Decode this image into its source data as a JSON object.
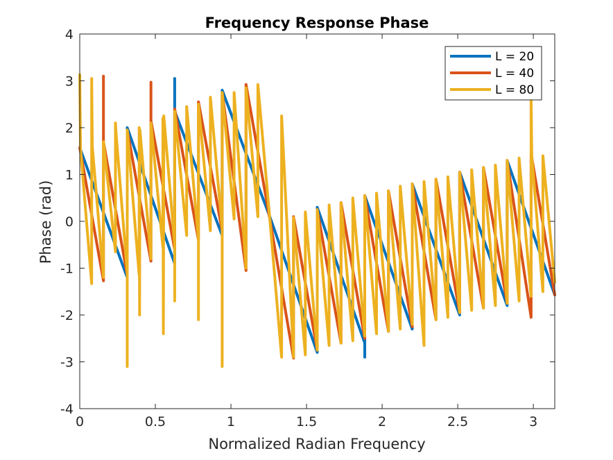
{
  "chart_data": {
    "type": "line",
    "title": "Frequency Response Phase",
    "xlabel": "Normalized Radian Frequency",
    "ylabel": "Phase (rad)",
    "xlim": [
      0,
      3.1416
    ],
    "ylim": [
      -4,
      4
    ],
    "xticks": [
      0,
      0.5,
      1,
      1.5,
      2,
      2.5,
      3
    ],
    "xtick_labels": [
      "0",
      "0.5",
      "1",
      "1.5",
      "2",
      "2.5",
      "3"
    ],
    "yticks": [
      4,
      3,
      2,
      1,
      0,
      -1,
      -2,
      -3,
      -4
    ],
    "ytick_labels": [
      "4",
      "3",
      "2",
      "1",
      "0",
      "-1",
      "-2",
      "-3",
      "-4"
    ],
    "grid": false,
    "legend_position": "top-right",
    "series": [
      {
        "name": "L = 20",
        "color": "#0072BD",
        "points": [
          [
            0,
            1.57
          ],
          [
            0.314,
            -1.2
          ],
          [
            0.314,
            2.0
          ],
          [
            0.628,
            -0.9
          ],
          [
            0.628,
            3.05
          ],
          [
            0.628,
            2.35
          ],
          [
            0.942,
            -0.3
          ],
          [
            0.942,
            2.8
          ],
          [
            1.257,
            0.1
          ],
          [
            1.571,
            -2.8
          ],
          [
            1.571,
            0.3
          ],
          [
            1.885,
            -2.6
          ],
          [
            1.885,
            -2.9
          ],
          [
            1.885,
            0.55
          ],
          [
            2.199,
            -2.3
          ],
          [
            2.199,
            0.8
          ],
          [
            2.513,
            -2.0
          ],
          [
            2.513,
            1.05
          ],
          [
            2.827,
            -1.8
          ],
          [
            2.827,
            1.3
          ],
          [
            3.1416,
            -1.57
          ]
        ]
      },
      {
        "name": "L = 40",
        "color": "#D95319",
        "points": [
          [
            0,
            1.57
          ],
          [
            0.157,
            -1.27
          ],
          [
            0.157,
            3.1
          ],
          [
            0.157,
            1.7
          ],
          [
            0.314,
            -1.15
          ],
          [
            0.314,
            1.95
          ],
          [
            0.471,
            -0.85
          ],
          [
            0.471,
            2.97
          ],
          [
            0.471,
            2.15
          ],
          [
            0.628,
            -0.6
          ],
          [
            0.628,
            2.4
          ],
          [
            0.785,
            -0.4
          ],
          [
            0.785,
            2.55
          ],
          [
            0.942,
            -0.2
          ],
          [
            0.942,
            2.75
          ],
          [
            1.1,
            -1.05
          ],
          [
            1.1,
            2.92
          ],
          [
            1.257,
            0.05
          ],
          [
            1.414,
            -2.92
          ],
          [
            1.414,
            0.1
          ],
          [
            1.571,
            -2.75
          ],
          [
            1.571,
            0.25
          ],
          [
            1.728,
            -2.6
          ],
          [
            1.728,
            0.4
          ],
          [
            1.885,
            -2.5
          ],
          [
            1.885,
            0.55
          ],
          [
            2.042,
            -2.35
          ],
          [
            2.042,
            0.65
          ],
          [
            2.199,
            -2.25
          ],
          [
            2.199,
            0.8
          ],
          [
            2.356,
            -2.1
          ],
          [
            2.356,
            0.9
          ],
          [
            2.513,
            -1.95
          ],
          [
            2.513,
            1.05
          ],
          [
            2.67,
            -1.85
          ],
          [
            2.67,
            1.15
          ],
          [
            2.827,
            -1.75
          ],
          [
            2.827,
            1.3
          ],
          [
            2.985,
            -2.05
          ],
          [
            2.985,
            1.45
          ],
          [
            3.1416,
            -1.57
          ]
        ]
      },
      {
        "name": "L = 80",
        "color": "#EDB120",
        "points": [
          [
            0,
            3.13
          ],
          [
            0.005,
            1.55
          ],
          [
            0.079,
            -1.33
          ],
          [
            0.079,
            3.05
          ],
          [
            0.083,
            1.6
          ],
          [
            0.157,
            -1.2
          ],
          [
            0.157,
            1.7
          ],
          [
            0.236,
            -0.65
          ],
          [
            0.236,
            2.1
          ],
          [
            0.24,
            1.9
          ],
          [
            0.314,
            -1.1
          ],
          [
            0.314,
            -3.1
          ],
          [
            0.314,
            1.95
          ],
          [
            0.393,
            -1.15
          ],
          [
            0.393,
            2.0
          ],
          [
            0.396,
            -2.0
          ],
          [
            0.398,
            1.95
          ],
          [
            0.471,
            -0.8
          ],
          [
            0.471,
            2.1
          ],
          [
            0.55,
            -0.55
          ],
          [
            0.55,
            2.2
          ],
          [
            0.553,
            -2.4
          ],
          [
            0.556,
            2.25
          ],
          [
            0.628,
            -0.5
          ],
          [
            0.628,
            -1.7
          ],
          [
            0.628,
            2.35
          ],
          [
            0.707,
            -0.3
          ],
          [
            0.707,
            2.45
          ],
          [
            0.785,
            -0.4
          ],
          [
            0.785,
            -2.1
          ],
          [
            0.785,
            2.5
          ],
          [
            0.864,
            -0.2
          ],
          [
            0.864,
            2.65
          ],
          [
            0.942,
            -0.15
          ],
          [
            0.942,
            -3.1
          ],
          [
            0.942,
            2.75
          ],
          [
            1.021,
            0.05
          ],
          [
            1.021,
            2.75
          ],
          [
            1.1,
            -1.0
          ],
          [
            1.1,
            2.85
          ],
          [
            1.178,
            0.1
          ],
          [
            1.178,
            2.92
          ],
          [
            1.257,
            0.05
          ],
          [
            1.335,
            -2.9
          ],
          [
            1.335,
            2.25
          ],
          [
            1.414,
            -2.9
          ],
          [
            1.414,
            0.08
          ],
          [
            1.492,
            -2.85
          ],
          [
            1.492,
            0.2
          ],
          [
            1.571,
            -2.75
          ],
          [
            1.571,
            0.25
          ],
          [
            1.649,
            -2.65
          ],
          [
            1.649,
            0.35
          ],
          [
            1.728,
            -2.6
          ],
          [
            1.728,
            0.4
          ],
          [
            1.806,
            -2.55
          ],
          [
            1.806,
            0.5
          ],
          [
            1.885,
            -2.45
          ],
          [
            1.885,
            0.55
          ],
          [
            1.963,
            -2.4
          ],
          [
            1.963,
            0.6
          ],
          [
            2.042,
            -2.35
          ],
          [
            2.042,
            0.65
          ],
          [
            2.12,
            -2.3
          ],
          [
            2.12,
            0.75
          ],
          [
            2.199,
            -2.2
          ],
          [
            2.199,
            0.8
          ],
          [
            2.277,
            -2.65
          ],
          [
            2.277,
            0.85
          ],
          [
            2.356,
            -2.1
          ],
          [
            2.356,
            0.9
          ],
          [
            2.435,
            -2.05
          ],
          [
            2.435,
            0.95
          ],
          [
            2.513,
            -1.95
          ],
          [
            2.513,
            1.05
          ],
          [
            2.592,
            -1.9
          ],
          [
            2.592,
            1.1
          ],
          [
            2.67,
            -1.85
          ],
          [
            2.67,
            1.15
          ],
          [
            2.749,
            -1.8
          ],
          [
            2.749,
            1.2
          ],
          [
            2.827,
            -1.75
          ],
          [
            2.827,
            1.3
          ],
          [
            2.906,
            -1.7
          ],
          [
            2.906,
            1.35
          ],
          [
            2.985,
            -1.6
          ],
          [
            2.985,
            2.65
          ],
          [
            2.99,
            1.4
          ],
          [
            3.063,
            -1.5
          ],
          [
            3.063,
            1.4
          ],
          [
            3.1416,
            -1.3
          ]
        ]
      }
    ]
  }
}
